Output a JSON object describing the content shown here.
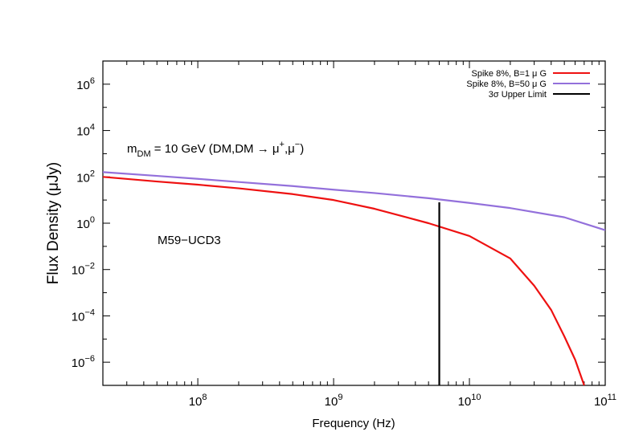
{
  "chart_data": {
    "type": "line",
    "title": "",
    "xlabel": "Frequency (Hz)",
    "ylabel": "Flux Density (μJy)",
    "xscale": "log",
    "yscale": "log",
    "xlim": [
      20000000,
      100000000000
    ],
    "ylim": [
      1e-07,
      10000000.0
    ],
    "legend_position": "top-right",
    "x_ticks": [
      {
        "value": 100000000,
        "base": "10",
        "exp": "8"
      },
      {
        "value": 1000000000,
        "base": "10",
        "exp": "9"
      },
      {
        "value": 10000000000,
        "base": "10",
        "exp": "10"
      },
      {
        "value": 100000000000,
        "base": "10",
        "exp": "11"
      }
    ],
    "y_ticks": [
      {
        "value": 1e-06,
        "base": "10",
        "exp": "−6"
      },
      {
        "value": 0.0001,
        "base": "10",
        "exp": "−4"
      },
      {
        "value": 0.01,
        "base": "10",
        "exp": "−2"
      },
      {
        "value": 1,
        "base": "10",
        "exp": "0"
      },
      {
        "value": 100,
        "base": "10",
        "exp": "2"
      },
      {
        "value": 10000,
        "base": "10",
        "exp": "4"
      },
      {
        "value": 1000000,
        "base": "10",
        "exp": "6"
      }
    ],
    "series": [
      {
        "name": "Spike 8%, B=1 μ G",
        "color": "#ee1111",
        "x": [
          20000000.0,
          50000000.0,
          100000000.0,
          200000000.0,
          500000000.0,
          1000000000.0,
          2000000000.0,
          5000000000.0,
          10000000000.0,
          20000000000.0,
          30000000000.0,
          40000000000.0,
          50000000000.0,
          60000000000.0,
          70000000000.0
        ],
        "y": [
          100,
          63,
          46,
          32,
          18,
          10,
          4.2,
          1.0,
          0.28,
          0.03,
          0.002,
          0.00018,
          1.3e-05,
          1.3e-06,
          1e-07
        ]
      },
      {
        "name": "Spike 8%, B=50 μ G",
        "color": "#9370db",
        "x": [
          20000000.0,
          50000000.0,
          100000000.0,
          200000000.0,
          500000000.0,
          1000000000.0,
          2000000000.0,
          5000000000.0,
          10000000000.0,
          20000000000.0,
          50000000000.0,
          100000000000.0
        ],
        "y": [
          160,
          110,
          82,
          60,
          40,
          28,
          20,
          12,
          7.5,
          4.5,
          1.8,
          0.5
        ]
      }
    ],
    "upper_limit": {
      "name": "3σ Upper Limit",
      "color": "#000000",
      "x": 6000000000,
      "y_top": 8,
      "y_bottom": 1e-07
    },
    "annotations": [
      {
        "id": "mass",
        "text_main": "m",
        "text_sub": "DM",
        "text_rest": " = 10 GeV (DM,DM → μ",
        "text_sup1": "+",
        "text_mid": ",μ",
        "text_sup2": "−",
        "text_end": ")"
      },
      {
        "id": "object",
        "text": "M59−UCD3"
      }
    ]
  }
}
